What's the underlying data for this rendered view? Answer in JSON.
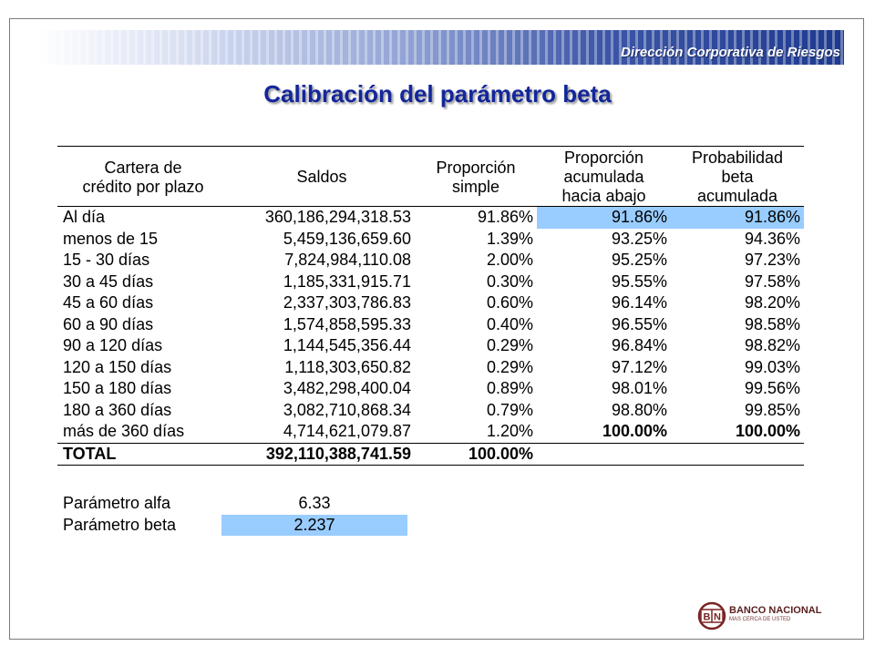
{
  "header": {
    "department": "Dirección Corporativa de Riesgos"
  },
  "title": "Calibración del parámetro beta",
  "table": {
    "columns": [
      [
        "Cartera de",
        "crédito por plazo"
      ],
      [
        "Saldos"
      ],
      [
        "Proporción",
        "simple"
      ],
      [
        "Proporción",
        "acumulada",
        "hacia abajo"
      ],
      [
        "Probabilidad",
        "beta",
        "acumulada"
      ]
    ],
    "rows": [
      [
        "Al día",
        "360,186,294,318.53",
        "91.86%",
        "91.86%",
        "91.86%"
      ],
      [
        "menos de 15",
        "5,459,136,659.60",
        "1.39%",
        "93.25%",
        "94.36%"
      ],
      [
        "15 - 30 días",
        "7,824,984,110.08",
        "2.00%",
        "95.25%",
        "97.23%"
      ],
      [
        "30 a 45 días",
        "1,185,331,915.71",
        "0.30%",
        "95.55%",
        "97.58%"
      ],
      [
        "45 a 60 días",
        "2,337,303,786.83",
        "0.60%",
        "96.14%",
        "98.20%"
      ],
      [
        "60 a 90 días",
        "1,574,858,595.33",
        "0.40%",
        "96.55%",
        "98.58%"
      ],
      [
        "90 a 120 días",
        "1,144,545,356.44",
        "0.29%",
        "96.84%",
        "98.82%"
      ],
      [
        "120 a 150 días",
        "1,118,303,650.82",
        "0.29%",
        "97.12%",
        "99.03%"
      ],
      [
        "150 a 180 días",
        "3,482,298,400.04",
        "0.89%",
        "98.01%",
        "99.56%"
      ],
      [
        "180 a 360 días",
        "3,082,710,868.34",
        "0.79%",
        "98.80%",
        "99.85%"
      ],
      [
        "más de 360 días",
        "4,714,621,079.87",
        "1.20%",
        "100.00%",
        "100.00%"
      ]
    ],
    "total": [
      "TOTAL",
      "392,110,388,741.59",
      "100.00%"
    ]
  },
  "parameters": [
    {
      "label": "Parámetro alfa",
      "value": "6.33"
    },
    {
      "label": "Parámetro beta",
      "value": "2.237"
    }
  ],
  "logo": {
    "letters": "BN",
    "name": "BANCO NACIONAL",
    "tagline": "MAS CERCA DE USTED"
  },
  "colors": {
    "title": "#13269a",
    "highlight": "#99ccff",
    "banner": "#1e3a8f",
    "logo": "#7a2424"
  }
}
